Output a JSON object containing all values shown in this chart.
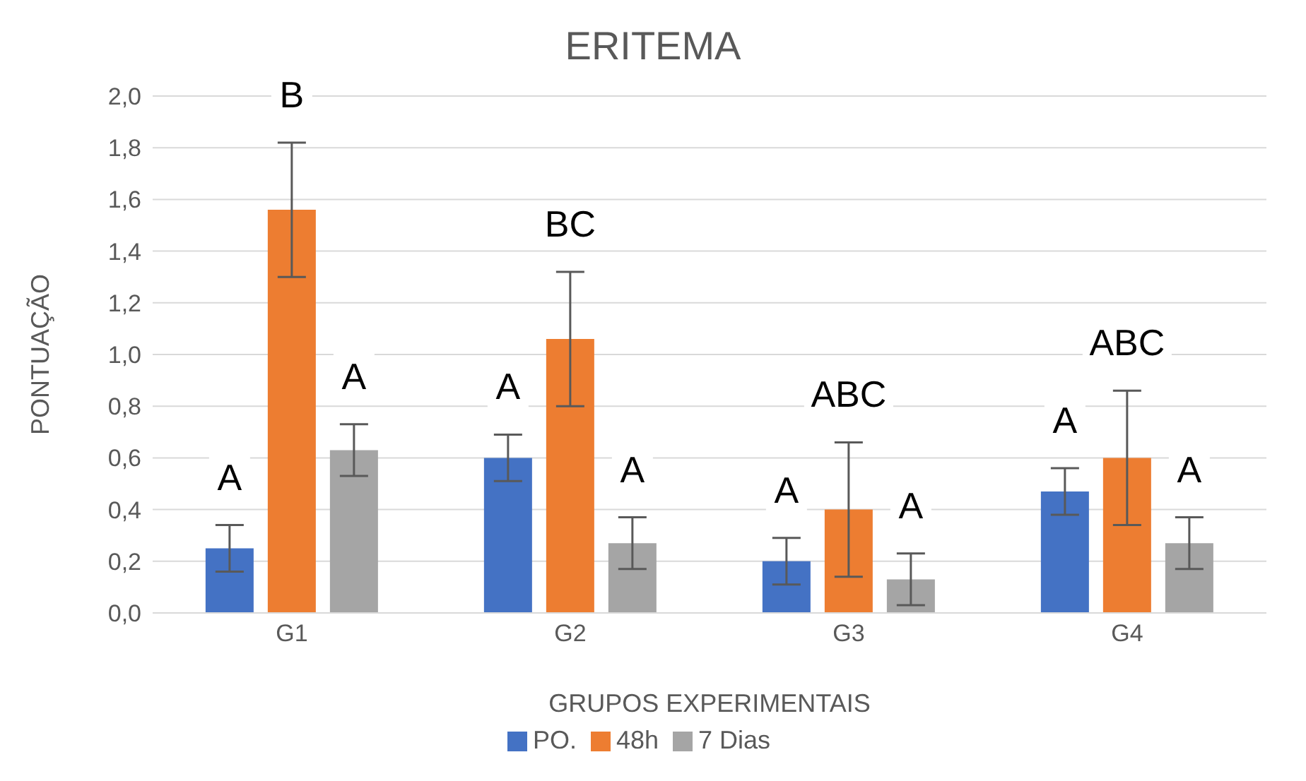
{
  "chart_data": {
    "type": "bar",
    "title": "ERITEMA",
    "xlabel": "GRUPOS EXPERIMENTAIS",
    "ylabel": "PONTUAÇÃO",
    "categories": [
      "G1",
      "G2",
      "G3",
      "G4"
    ],
    "series": [
      {
        "name": "PO.",
        "color": "#4472c4",
        "values": [
          0.25,
          0.6,
          0.2,
          0.47
        ],
        "errors": [
          0.09,
          0.09,
          0.09,
          0.09
        ]
      },
      {
        "name": "48h",
        "color": "#ed7d31",
        "values": [
          1.56,
          1.06,
          0.4,
          0.6
        ],
        "errors": [
          0.26,
          0.26,
          0.26,
          0.26
        ]
      },
      {
        "name": "7 Dias",
        "color": "#a5a5a5",
        "values": [
          0.63,
          0.27,
          0.13,
          0.27
        ],
        "errors": [
          0.1,
          0.1,
          0.1,
          0.1
        ]
      }
    ],
    "ylim": [
      0,
      2
    ],
    "yticks": [
      {
        "value": 0,
        "label": "0,0"
      },
      {
        "value": 0.2,
        "label": "0,2"
      },
      {
        "value": 0.4,
        "label": "0,4"
      },
      {
        "value": 0.6,
        "label": "0,6"
      },
      {
        "value": 0.8,
        "label": "0,8"
      },
      {
        "value": 1,
        "label": "1,0"
      },
      {
        "value": 1.2,
        "label": "1,2"
      },
      {
        "value": 1.4,
        "label": "1,4"
      },
      {
        "value": 1.6,
        "label": "1,6"
      },
      {
        "value": 1.8,
        "label": "1,8"
      },
      {
        "value": 2,
        "label": "2,0"
      }
    ],
    "grid": "y",
    "legend": "bottom",
    "annotations": [
      "A",
      "B",
      "A",
      "A",
      "BC",
      "A",
      "A",
      "ABC",
      "A",
      "A",
      "ABC",
      "A"
    ]
  }
}
